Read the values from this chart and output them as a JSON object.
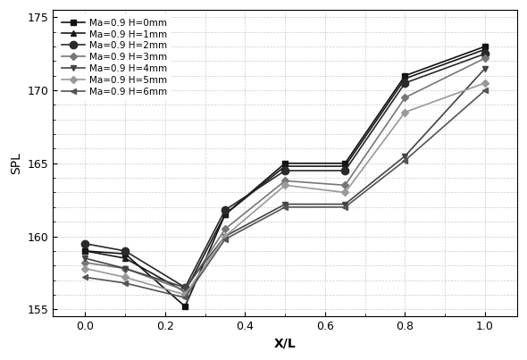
{
  "x": [
    0,
    0.1,
    0.25,
    0.35,
    0.5,
    0.65,
    0.8,
    1.0
  ],
  "series": [
    {
      "label": "Ma=0.9 H=0mm",
      "color": "#111111",
      "marker": "s",
      "markersize": 5,
      "linewidth": 1.2,
      "y": [
        159.0,
        158.8,
        155.2,
        161.5,
        165.0,
        165.0,
        171.0,
        173.0
      ]
    },
    {
      "label": "Ma=0.9 H=1mm",
      "color": "#1a1a1a",
      "marker": "^",
      "markersize": 5,
      "linewidth": 1.2,
      "y": [
        159.0,
        158.5,
        156.2,
        161.5,
        164.8,
        164.8,
        170.8,
        172.8
      ]
    },
    {
      "label": "Ma=0.9 H=2mm",
      "color": "#2a2a2a",
      "marker": "o",
      "markersize": 6,
      "linewidth": 1.2,
      "y": [
        159.5,
        159.0,
        156.5,
        161.8,
        164.5,
        164.5,
        170.5,
        172.5
      ]
    },
    {
      "label": "Ma=0.9 H=3mm",
      "color": "#777777",
      "marker": "D",
      "markersize": 4,
      "linewidth": 1.2,
      "y": [
        158.2,
        157.8,
        156.3,
        160.5,
        163.8,
        163.5,
        169.5,
        172.2
      ]
    },
    {
      "label": "Ma=0.9 H=4mm",
      "color": "#444444",
      "marker": "v",
      "markersize": 5,
      "linewidth": 1.2,
      "y": [
        158.5,
        157.8,
        156.5,
        160.0,
        162.2,
        162.2,
        165.5,
        171.5
      ]
    },
    {
      "label": "Ma=0.9 H=5mm",
      "color": "#999999",
      "marker": "D",
      "markersize": 4,
      "linewidth": 1.2,
      "y": [
        157.8,
        157.2,
        156.0,
        160.0,
        163.5,
        163.0,
        168.5,
        170.5
      ]
    },
    {
      "label": "Ma=0.9 H=6mm",
      "color": "#555555",
      "marker": "<",
      "markersize": 5,
      "linewidth": 1.2,
      "y": [
        157.2,
        156.8,
        155.8,
        159.8,
        162.0,
        162.0,
        165.2,
        170.0
      ]
    }
  ],
  "xlabel": "X/L",
  "ylabel": "SPL",
  "xlim": [
    -0.08,
    1.08
  ],
  "ylim": [
    154.5,
    175.5
  ],
  "yticks": [
    155,
    160,
    165,
    170,
    175
  ],
  "xticks": [
    0,
    0.2,
    0.4,
    0.6,
    0.8,
    1.0
  ],
  "grid_color": "#cccccc",
  "grid_linestyle": "--",
  "grid_linewidth": 0.5,
  "background_color": "#ffffff",
  "legend_fontsize": 7.5,
  "axis_fontsize": 10,
  "tick_fontsize": 9
}
